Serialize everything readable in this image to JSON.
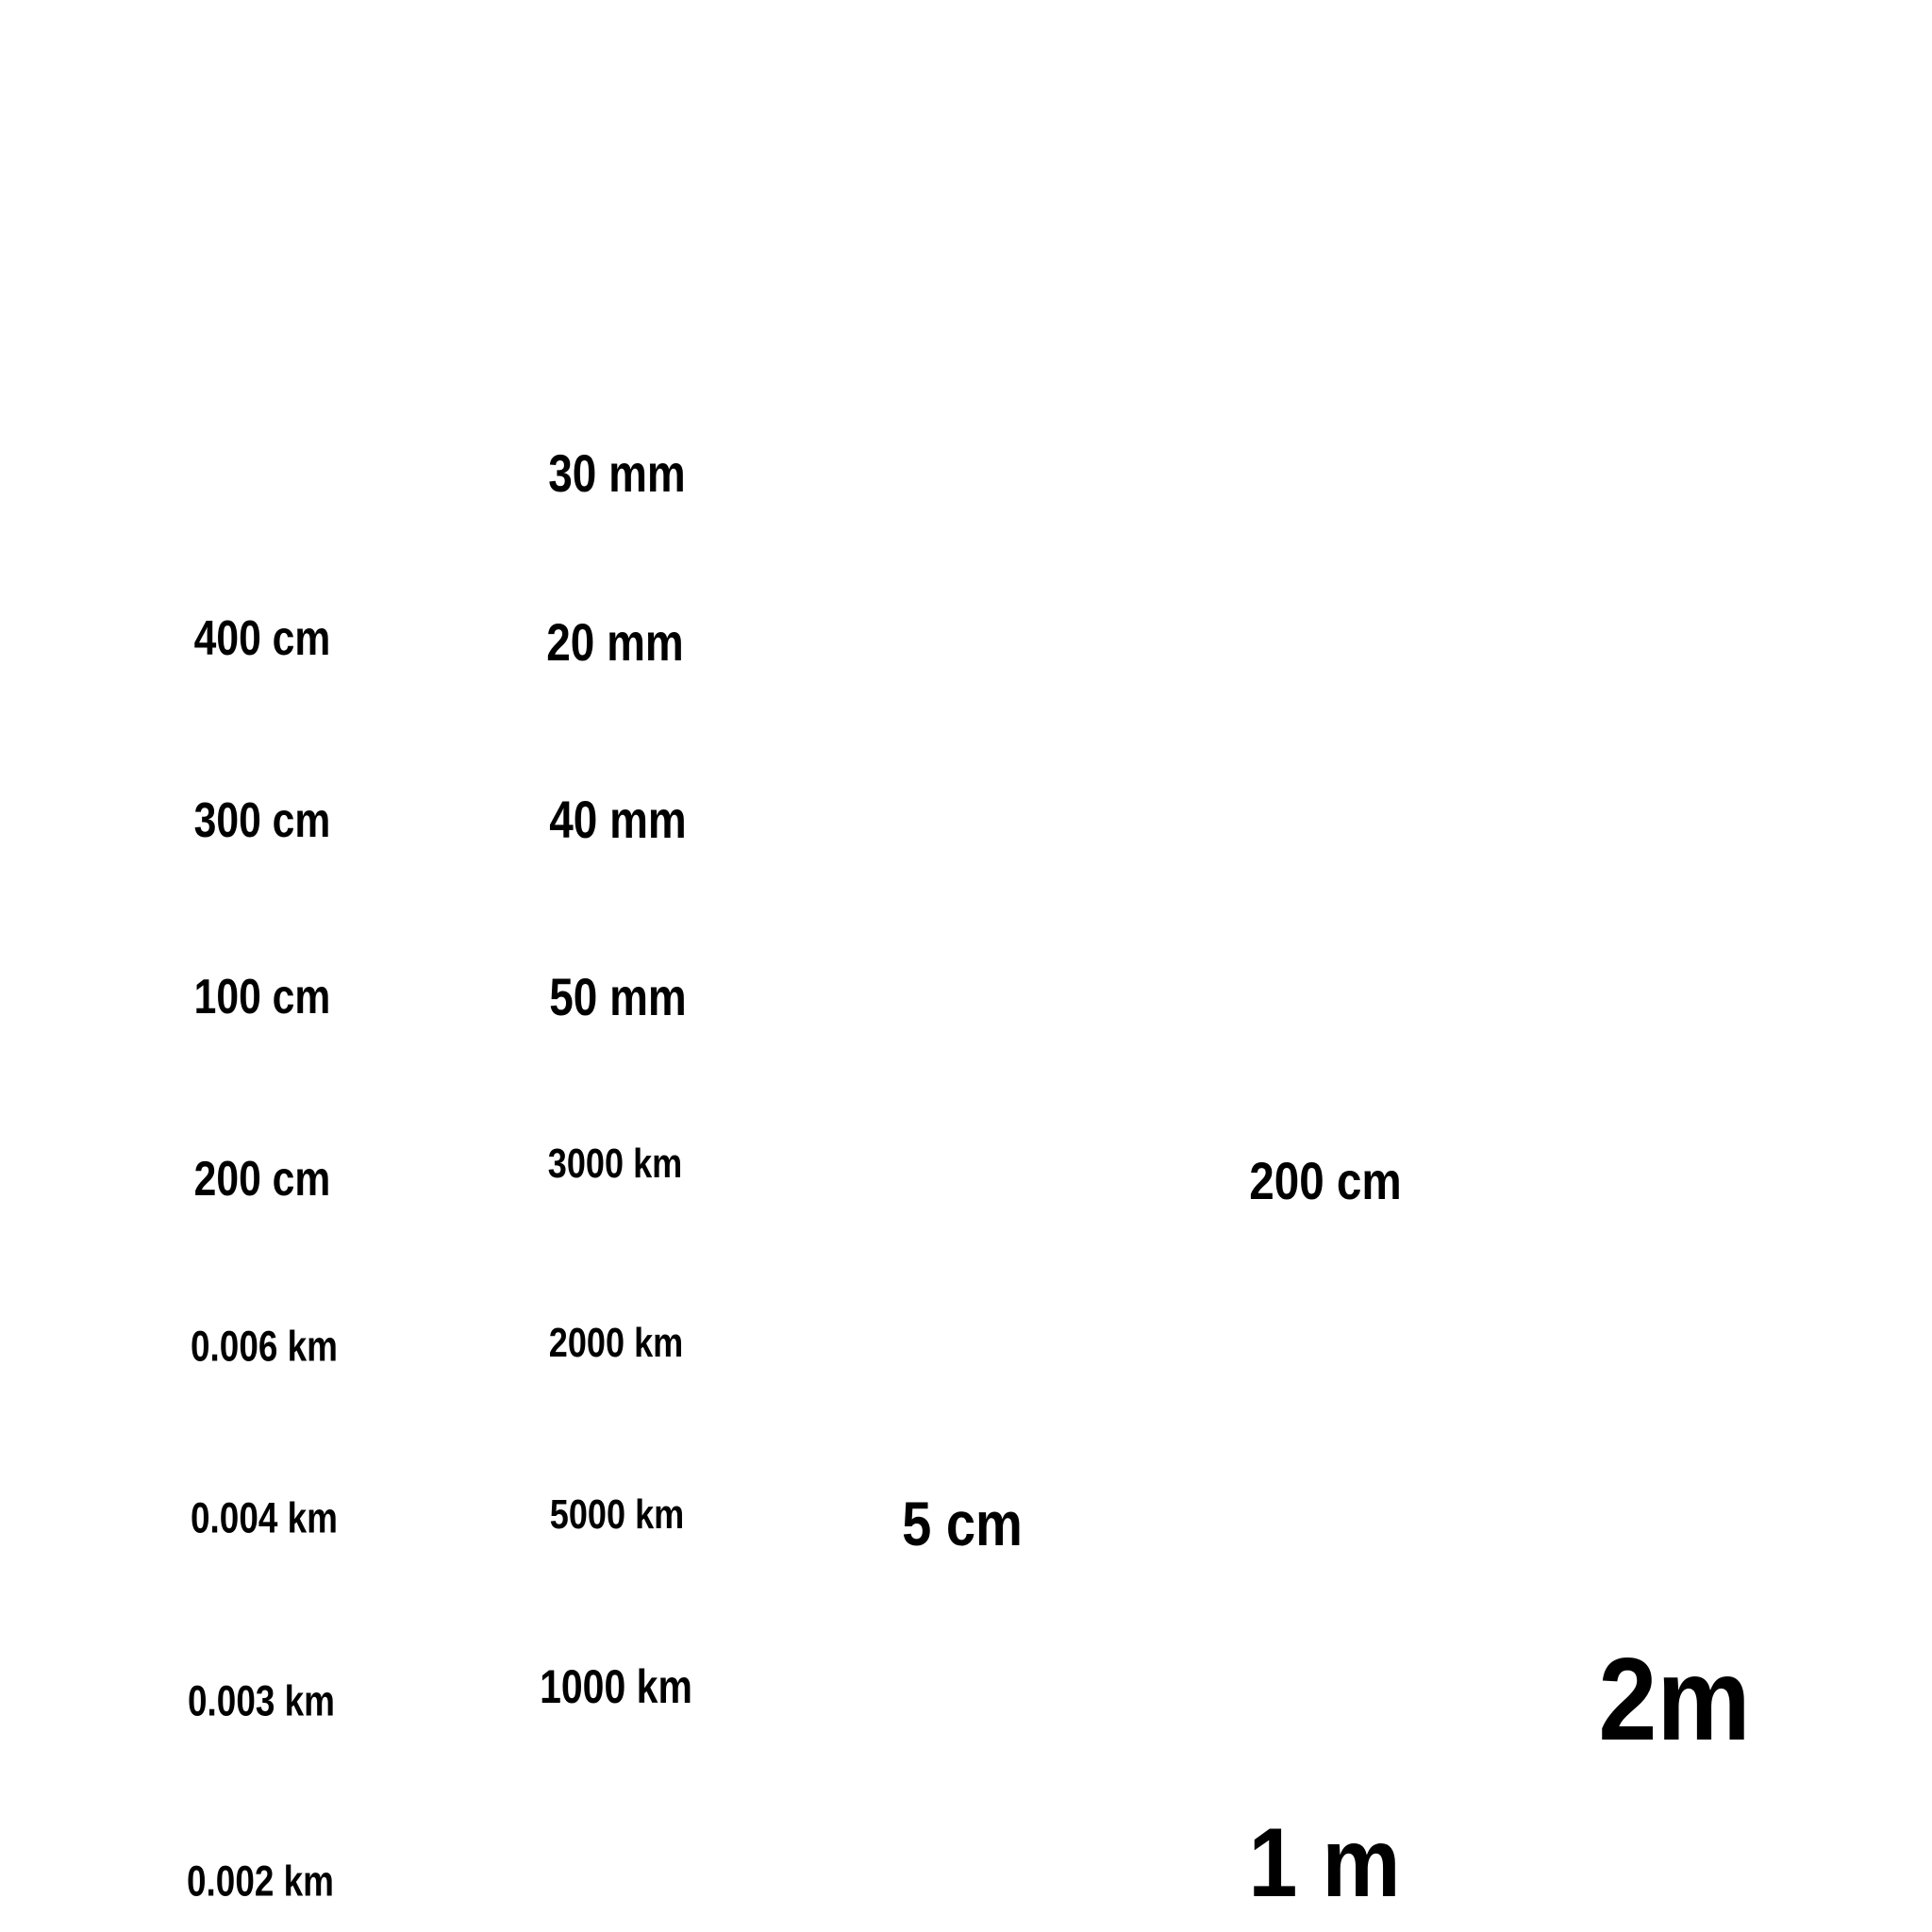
{
  "labels": {
    "column_1": [
      "400 cm",
      "300 cm",
      "100 cm",
      "200 cm",
      "0.006 km",
      "0.004 km",
      "0.003 km",
      "0.002 km"
    ],
    "column_2": [
      "30 mm",
      "20 mm",
      "40 mm",
      "50 mm",
      "3000 km",
      "2000 km",
      "5000 km",
      "1000 km"
    ],
    "scattered": [
      "5 cm",
      "200 cm",
      "2m",
      "1 m"
    ]
  }
}
